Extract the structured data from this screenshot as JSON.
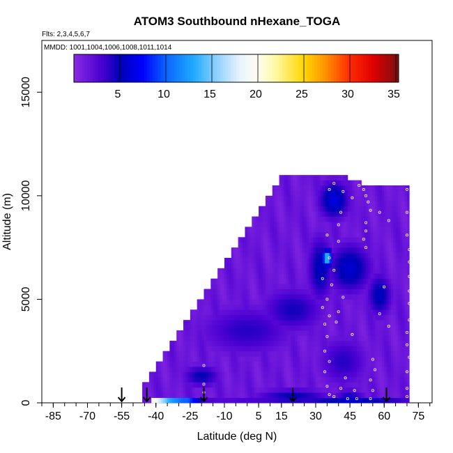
{
  "chart_data": {
    "type": "heatmap",
    "title": "ATOM3 Southbound nHexane_TOGA",
    "flights_label": "Flts: 2,3,4,5,6,7",
    "dates_label": "MMDD: 1001,1004,1006,1008,1011,1014",
    "xlabel": "Latitude (deg N)",
    "ylabel": "Altitude (m)",
    "xlim": [
      -90,
      81
    ],
    "ylim": [
      0,
      17500
    ],
    "x_ticks": [
      -85,
      -70,
      -55,
      -40,
      -25,
      -10,
      5,
      15,
      30,
      45,
      60,
      75
    ],
    "x_tick_labels": [
      "-85",
      "-70",
      "-55",
      "-40",
      "-25",
      "-10",
      "5",
      "15",
      "30",
      "45",
      "60",
      "75"
    ],
    "x_minor_step": 5,
    "y_ticks": [
      0,
      5000,
      10000,
      15000
    ],
    "y_tick_labels": [
      "0",
      "5000",
      "10000",
      "15000"
    ],
    "colorbar": {
      "min": 0,
      "max": 35.3,
      "ticks": [
        5,
        10,
        15,
        20,
        25,
        30,
        35
      ],
      "tick_labels": [
        "5",
        "10",
        "15",
        "20",
        "25",
        "30",
        "35"
      ],
      "stops": [
        [
          0,
          "#8a2be2"
        ],
        [
          3,
          "#4b00d2"
        ],
        [
          5,
          "#0000b4"
        ],
        [
          7.5,
          "#0000ff"
        ],
        [
          10,
          "#0a64ff"
        ],
        [
          13,
          "#1eaaff"
        ],
        [
          15.5,
          "#8fd0ff"
        ],
        [
          18,
          "#e6f3ff"
        ],
        [
          20,
          "#fffff0"
        ],
        [
          22,
          "#fff7a0"
        ],
        [
          25,
          "#ffd700"
        ],
        [
          27.5,
          "#ff8c00"
        ],
        [
          30,
          "#ff2a00"
        ],
        [
          32.5,
          "#e00000"
        ],
        [
          35.3,
          "#7a1010"
        ]
      ]
    },
    "background_value": 1.5,
    "domain_top_altitude": [
      [
        -46,
        1000
      ],
      [
        -43,
        1500
      ],
      [
        -40,
        2000
      ],
      [
        -37,
        2500
      ],
      [
        -34,
        3000
      ],
      [
        -31,
        3500
      ],
      [
        -28,
        4000
      ],
      [
        -25,
        4500
      ],
      [
        -22,
        5000
      ],
      [
        -19,
        5500
      ],
      [
        -16,
        6000
      ],
      [
        -13,
        6500
      ],
      [
        -10,
        7000
      ],
      [
        -7,
        7500
      ],
      [
        -4,
        8000
      ],
      [
        -1,
        8500
      ],
      [
        2,
        9000
      ],
      [
        5,
        9500
      ],
      [
        8,
        10000
      ],
      [
        11,
        10500
      ],
      [
        14,
        11000
      ],
      [
        34,
        11000
      ],
      [
        38,
        10900
      ],
      [
        44,
        10700
      ],
      [
        50,
        10500
      ],
      [
        58,
        10500
      ],
      [
        71,
        10500
      ]
    ],
    "enhancements": [
      {
        "lat": 35,
        "alt": 7000,
        "value": 15,
        "sx": 1.5,
        "sy": 300
      },
      {
        "lat": 38,
        "alt": 9800,
        "value": 6.5,
        "sx": 5,
        "sy": 700
      },
      {
        "lat": 45,
        "alt": 6500,
        "value": 6,
        "sx": 7,
        "sy": 900
      },
      {
        "lat": 32,
        "alt": 6500,
        "value": 5.5,
        "sx": 4,
        "sy": 1200
      },
      {
        "lat": 58,
        "alt": 5200,
        "value": 5.5,
        "sx": 4,
        "sy": 800
      },
      {
        "lat": 20,
        "alt": 4500,
        "value": 4.5,
        "sx": 10,
        "sy": 800
      },
      {
        "lat": 0,
        "alt": 3500,
        "value": 4,
        "sx": 15,
        "sy": 900
      },
      {
        "lat": -20,
        "alt": 1300,
        "value": 5,
        "sx": 6,
        "sy": 400
      },
      {
        "lat": 42,
        "alt": 2000,
        "value": 4,
        "sx": 8,
        "sy": 900
      },
      {
        "lat": 45,
        "alt": 300,
        "value": 4.5,
        "sx": 5,
        "sy": 300
      },
      {
        "lat": 20,
        "alt": 300,
        "value": 5,
        "sx": 12,
        "sy": 300
      }
    ],
    "surface_band": {
      "alt_range": [
        0,
        250
      ],
      "points": [
        [
          -42,
          20
        ],
        [
          -40,
          19
        ],
        [
          -38,
          17
        ],
        [
          -36,
          15
        ],
        [
          -34,
          13
        ],
        [
          -32,
          12
        ],
        [
          -30,
          11
        ],
        [
          -28,
          10
        ],
        [
          -26,
          10
        ],
        [
          -24,
          8
        ],
        [
          -22,
          6
        ],
        [
          -20,
          4
        ],
        [
          -18,
          3
        ],
        [
          -10,
          2.5
        ],
        [
          30,
          4
        ],
        [
          45,
          6
        ],
        [
          71,
          3
        ]
      ]
    },
    "sample_points": [
      [
        36,
        10300
      ],
      [
        38,
        10600
      ],
      [
        42,
        10200
      ],
      [
        46,
        9900
      ],
      [
        49,
        10500
      ],
      [
        51,
        10300
      ],
      [
        52,
        10000
      ],
      [
        53,
        9700
      ],
      [
        54,
        9300
      ],
      [
        52,
        8700
      ],
      [
        52,
        8300
      ],
      [
        51,
        7900
      ],
      [
        52,
        7500
      ],
      [
        58,
        9200
      ],
      [
        62,
        8800
      ],
      [
        70,
        10300
      ],
      [
        70,
        9200
      ],
      [
        70,
        8100
      ],
      [
        71,
        7400
      ],
      [
        71,
        6800
      ],
      [
        71,
        6100
      ],
      [
        71,
        5400
      ],
      [
        71,
        4800
      ],
      [
        71,
        4000
      ],
      [
        70,
        3400
      ],
      [
        70,
        2800
      ],
      [
        71,
        2200
      ],
      [
        70,
        1500
      ],
      [
        70,
        700
      ],
      [
        70,
        300
      ],
      [
        41,
        9200
      ],
      [
        40,
        8600
      ],
      [
        35,
        8100
      ],
      [
        40,
        7800
      ],
      [
        36,
        7000
      ],
      [
        38,
        6400
      ],
      [
        33,
        6000
      ],
      [
        37,
        5700
      ],
      [
        35,
        5000
      ],
      [
        33,
        4600
      ],
      [
        36,
        4200
      ],
      [
        34,
        3800
      ],
      [
        35,
        3200
      ],
      [
        34,
        2500
      ],
      [
        36,
        2000
      ],
      [
        34,
        1500
      ],
      [
        35,
        800
      ],
      [
        36,
        400
      ],
      [
        38,
        300
      ],
      [
        41,
        700
      ],
      [
        43,
        1200
      ],
      [
        46,
        3300
      ],
      [
        47,
        600
      ],
      [
        44,
        200
      ],
      [
        55,
        2100
      ],
      [
        56,
        1600
      ],
      [
        54,
        1100
      ],
      [
        55,
        600
      ],
      [
        54,
        200
      ],
      [
        48,
        200
      ],
      [
        58,
        4300
      ],
      [
        62,
        3700
      ],
      [
        60,
        5600
      ],
      [
        40,
        4400
      ],
      [
        42,
        5100
      ],
      [
        39,
        3900
      ],
      [
        -19,
        1800
      ],
      [
        -19,
        900
      ],
      [
        -19,
        500
      ]
    ],
    "arrows_lat": [
      -55,
      -44,
      -19,
      20,
      61
    ]
  }
}
